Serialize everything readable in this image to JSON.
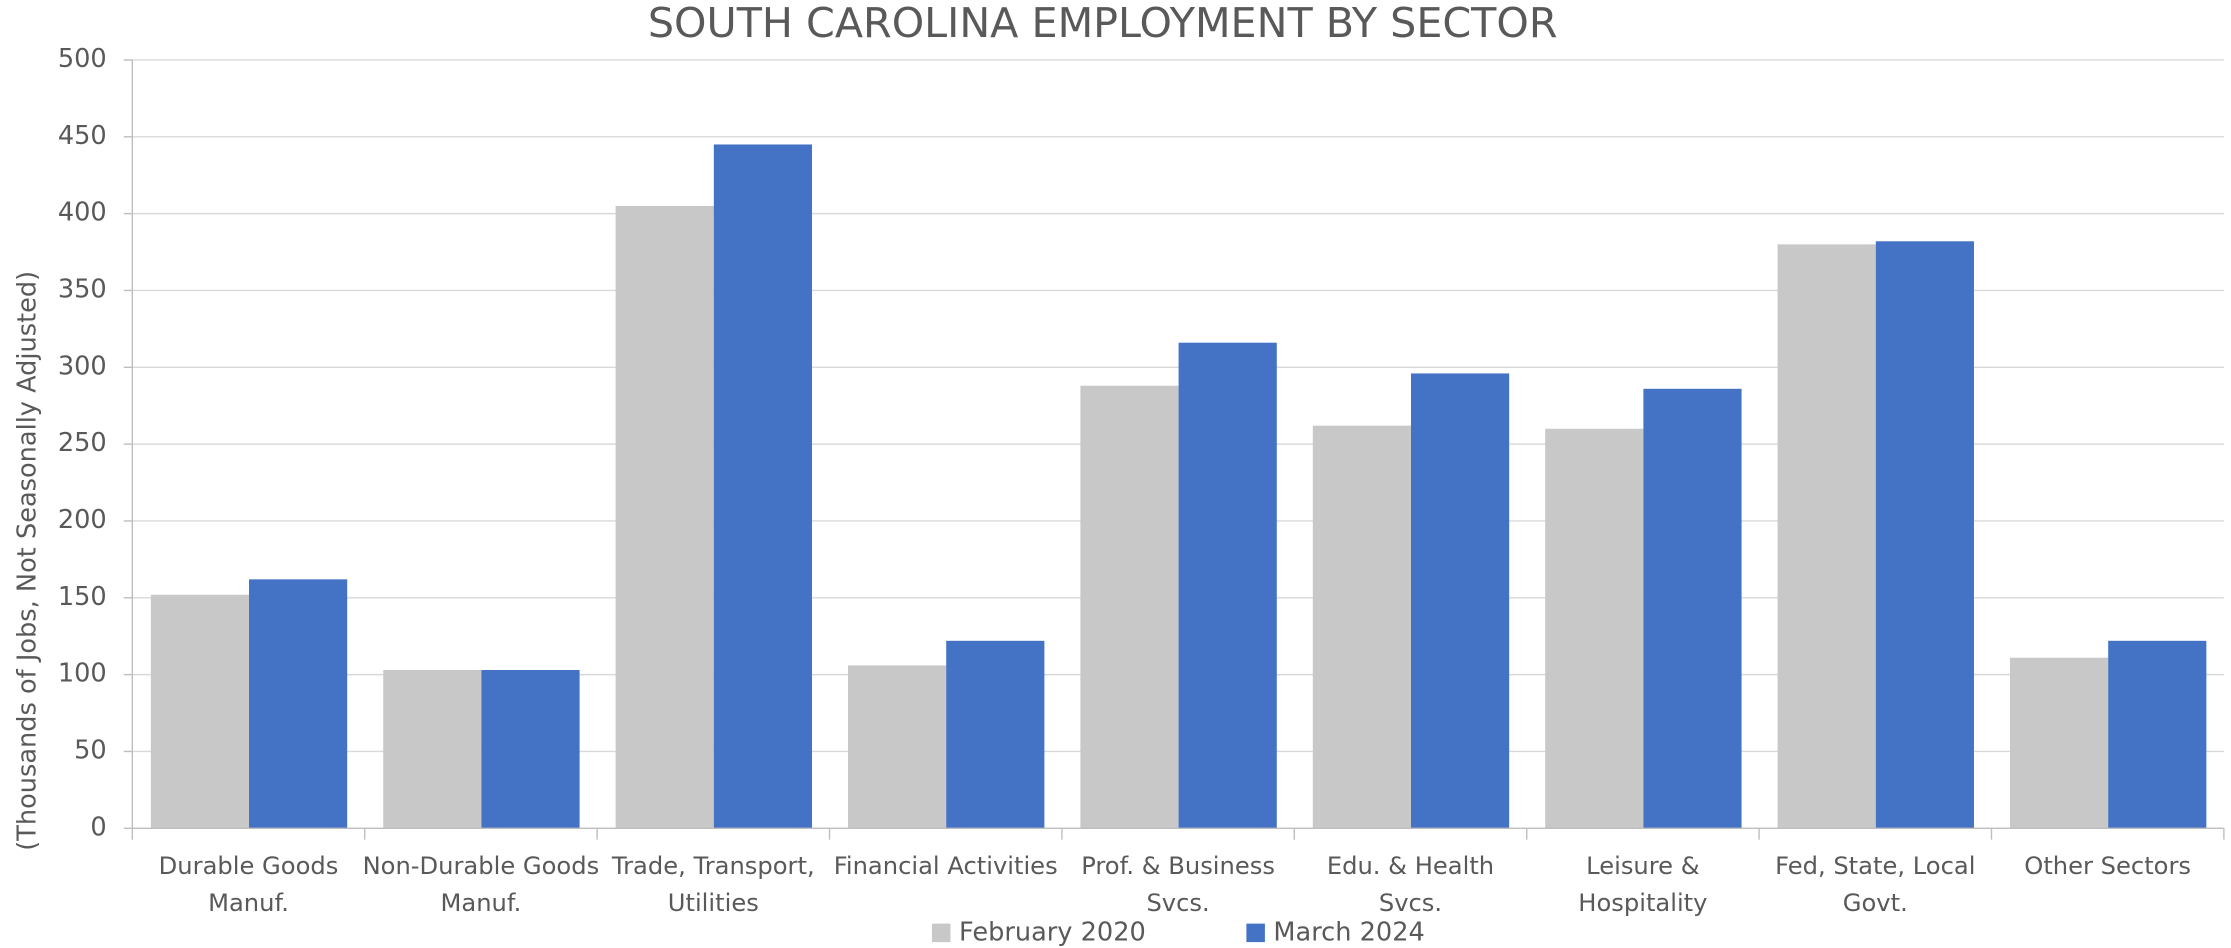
{
  "chart_data": {
    "type": "bar",
    "title": "SOUTH CAROLINA EMPLOYMENT BY SECTOR",
    "y_label": "(Thousands of Jobs, Not Seasonally Adjusted)",
    "categories": [
      "Durable Goods Manuf.",
      "Non-Durable Goods Manuf.",
      "Trade, Transport, Utilities",
      "Financial Activities",
      "Prof. & Business Svcs.",
      "Edu. & Health Svcs.",
      "Leisure & Hospitality",
      "Fed, State, Local Govt.",
      "Other Sectors"
    ],
    "series": [
      {
        "name": "February 2020",
        "color": "#c8c8c8",
        "values": [
          152,
          103,
          405,
          106,
          288,
          262,
          260,
          380,
          111
        ]
      },
      {
        "name": "March 2024",
        "color": "#4472c4",
        "values": [
          162,
          103,
          445,
          122,
          316,
          296,
          286,
          382,
          122
        ]
      }
    ],
    "ylim": [
      0,
      500
    ],
    "yticks": [
      0,
      50,
      100,
      150,
      200,
      250,
      300,
      350,
      400,
      450,
      500
    ],
    "grid": true,
    "legend": "bottom"
  }
}
